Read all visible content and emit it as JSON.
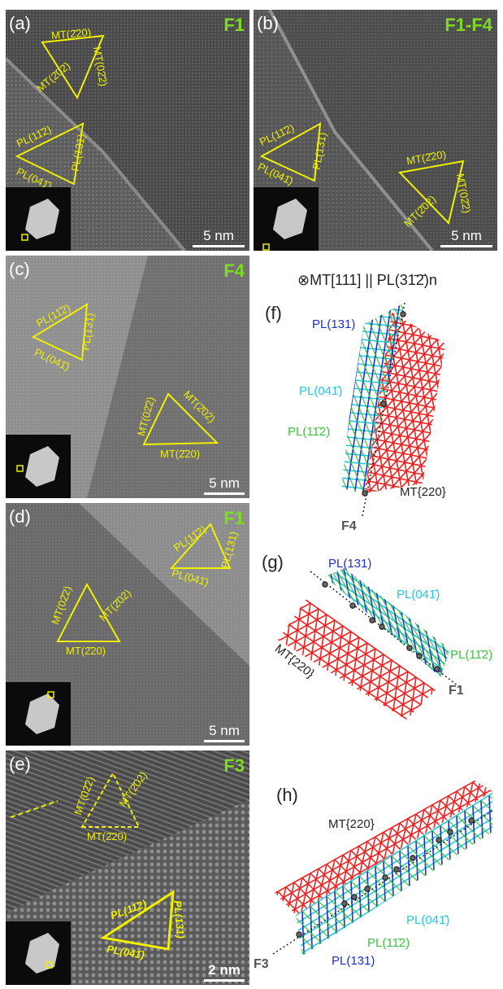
{
  "panels": {
    "a": {
      "label": "(a)",
      "facet": "F1",
      "scale": "5 nm",
      "mt": [
        "MT(2̄20)",
        "MT(02̄2)",
        "MT(2̄02)"
      ],
      "pl": [
        "PL(11̄2)",
        "PL(131)",
        "PL(041̄)"
      ]
    },
    "b": {
      "label": "(b)",
      "facet": "F1-F4",
      "scale": "5 nm",
      "mt": [
        "MT(2̄20)",
        "MT(02̄2)",
        "MT(2̄02)"
      ],
      "pl": [
        "PL(11̄2)",
        "PL(131)",
        "PL(041̄)"
      ]
    },
    "c": {
      "label": "(c)",
      "facet": "F4",
      "scale": "5 nm",
      "mt": [
        "MT(2̄02)",
        "MT(02̄2)",
        "MT(2̄20)"
      ],
      "pl": [
        "PL(11̄2)",
        "PL(131)",
        "PL(041̄)"
      ]
    },
    "d": {
      "label": "(d)",
      "facet": "F1",
      "scale": "5 nm",
      "mt": [
        "MT(2̄02)",
        "MT(02̄2)",
        "MT(2̄20)"
      ],
      "pl": [
        "PL(11̄2)",
        "PL(131)",
        "PL(041̄)"
      ]
    },
    "e": {
      "label": "(e)",
      "facet": "F3",
      "scale": "2 nm",
      "mt": [
        "MT(2̄02)",
        "MT(02̄2)",
        "MT(2̄20)"
      ],
      "pl": [
        "PL(11̄2)",
        "PL(131)",
        "PL(041̄)"
      ]
    }
  },
  "schematic": {
    "header": "⊗MT[111] || PL(31̄2̄)n",
    "f": {
      "label": "(f)",
      "pl131": "PL(131)",
      "pl041": "PL(041̄)",
      "pl112": "PL(11̄2)",
      "mt": "MT{220}",
      "facet": "F4"
    },
    "g": {
      "label": "(g)",
      "pl131": "PL(131)",
      "pl041": "PL(041̄)",
      "pl112": "PL(11̄2)",
      "mt": "MT{220}",
      "facet": "F1"
    },
    "h": {
      "label": "(h)",
      "pl131": "PL(131)",
      "pl041": "PL(041̄)",
      "pl112": "PL(11̄2)",
      "mt": "MT{220}",
      "facet": "F3"
    }
  },
  "colors": {
    "mt": "#ee2222",
    "pl131": "#1a2fd0",
    "pl041": "#22c6e6",
    "pl112": "#3cc43c",
    "annot": "#f0f000",
    "facet": "#7ddc1f"
  }
}
